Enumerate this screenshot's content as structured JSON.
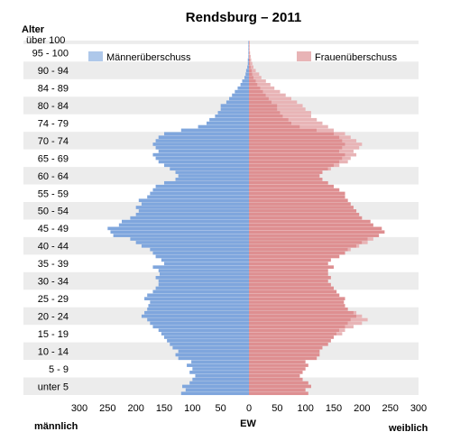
{
  "chart_data": {
    "type": "bar",
    "orientation": "horizontal-population-pyramid",
    "title": "Rendsburg – 2011",
    "y_axis_title": "Alter",
    "x_axis_unit": "EW",
    "left_side_label": "männlich",
    "right_side_label": "weiblich",
    "xlim": [
      -300,
      300
    ],
    "x_tick_values": [
      -300,
      -250,
      -200,
      -150,
      -100,
      -50,
      0,
      50,
      100,
      150,
      200,
      250,
      300
    ],
    "x_tick_labels": [
      "300",
      "250",
      "200",
      "150",
      "100",
      "50",
      "0",
      "50",
      "100",
      "150",
      "200",
      "250",
      "300"
    ],
    "age_group_labels": [
      "unter 5",
      "5 - 9",
      "10 - 14",
      "15 - 19",
      "20 - 24",
      "25 - 29",
      "30 - 34",
      "35 - 39",
      "40 - 44",
      "45 - 49",
      "50 - 54",
      "55 - 59",
      "60 - 64",
      "65 - 69",
      "70 - 74",
      "74 - 79",
      "80 - 84",
      "84 - 89",
      "90 - 94",
      "95 - 100",
      "über 100"
    ],
    "legend": [
      {
        "name": "Männerüberschuss",
        "color": "#aec8ea",
        "position": "top-left"
      },
      {
        "name": "Frauenüberschuss",
        "color": "#e8b4b6",
        "position": "top-right"
      }
    ],
    "colors": {
      "male": "#7fa6dd",
      "female": "#de8f91",
      "male_surplus": "#aec8ea",
      "female_surplus": "#e8b4b6",
      "band": "#ececec"
    },
    "single_year_ages_0_to_100": {
      "male": [
        120,
        112,
        118,
        105,
        100,
        95,
        105,
        100,
        110,
        102,
        125,
        130,
        125,
        135,
        140,
        145,
        150,
        155,
        160,
        170,
        175,
        180,
        190,
        185,
        180,
        178,
        175,
        185,
        180,
        170,
        165,
        160,
        160,
        165,
        158,
        160,
        170,
        150,
        155,
        165,
        170,
        175,
        190,
        200,
        210,
        240,
        245,
        250,
        230,
        225,
        210,
        200,
        195,
        200,
        190,
        195,
        180,
        175,
        170,
        165,
        150,
        130,
        125,
        130,
        140,
        150,
        160,
        165,
        170,
        160,
        165,
        170,
        165,
        160,
        150,
        120,
        90,
        75,
        70,
        60,
        55,
        50,
        50,
        40,
        35,
        30,
        25,
        20,
        15,
        12,
        8,
        6,
        5,
        3,
        2,
        2,
        1,
        1,
        1,
        1,
        1
      ],
      "female": [
        105,
        100,
        110,
        105,
        95,
        90,
        95,
        100,
        105,
        100,
        120,
        125,
        125,
        130,
        140,
        145,
        150,
        165,
        170,
        185,
        200,
        210,
        200,
        190,
        175,
        170,
        168,
        170,
        160,
        155,
        150,
        145,
        140,
        145,
        140,
        140,
        150,
        140,
        145,
        160,
        170,
        180,
        195,
        210,
        220,
        230,
        240,
        235,
        220,
        215,
        200,
        195,
        190,
        185,
        180,
        175,
        170,
        170,
        160,
        150,
        140,
        130,
        125,
        130,
        145,
        160,
        175,
        180,
        190,
        185,
        195,
        200,
        190,
        180,
        170,
        150,
        140,
        130,
        120,
        110,
        110,
        100,
        95,
        85,
        75,
        65,
        55,
        45,
        38,
        30,
        22,
        18,
        12,
        8,
        6,
        4,
        3,
        2,
        1,
        1,
        1
      ]
    }
  }
}
